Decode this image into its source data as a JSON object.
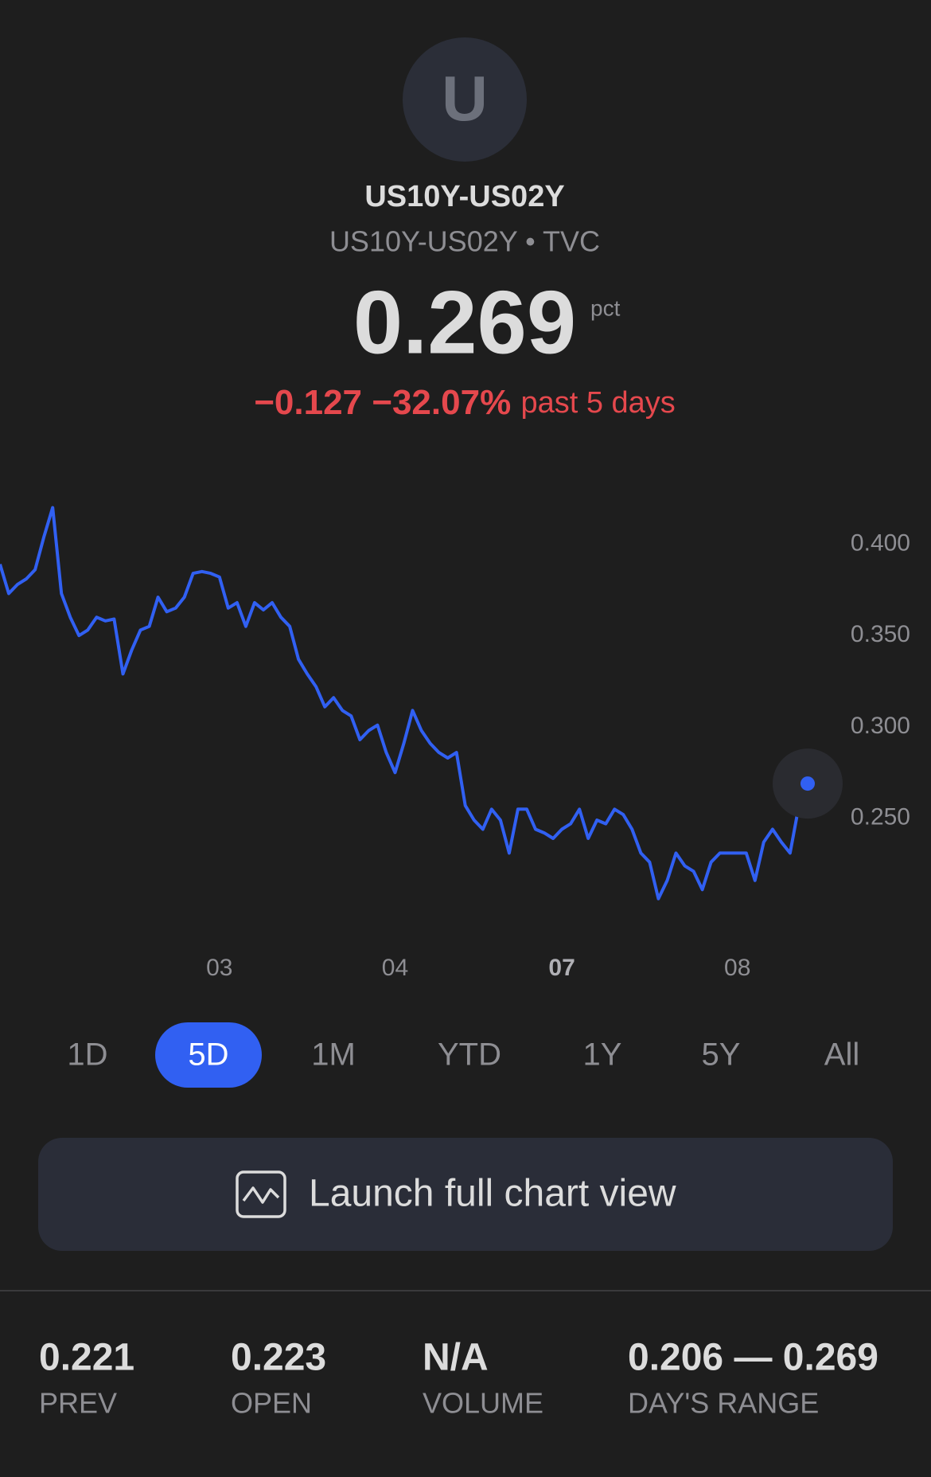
{
  "header": {
    "avatar_letter": "U",
    "title": "US10Y-US02Y",
    "subtitle": "US10Y-US02Y • TVC",
    "price": "0.269",
    "unit": "pct",
    "change": "−0.127",
    "change_percent": "−32.07%",
    "period": "past 5 days"
  },
  "chart_data": {
    "type": "line",
    "color": "#3160f2",
    "categories": [
      null,
      null,
      null,
      null,
      null,
      null,
      null,
      null,
      null,
      null,
      null,
      null,
      null,
      null,
      null,
      null,
      null,
      null,
      null,
      null,
      null,
      null,
      null,
      null,
      null,
      "03",
      null,
      null,
      null,
      null,
      null,
      null,
      null,
      null,
      null,
      null,
      null,
      null,
      null,
      null,
      null,
      null,
      null,
      null,
      null,
      "04",
      null,
      null,
      null,
      null,
      null,
      null,
      null,
      null,
      null,
      null,
      null,
      null,
      null,
      null,
      null,
      null,
      null,
      null,
      "07",
      null,
      null,
      null,
      null,
      null,
      null,
      null,
      null,
      null,
      null,
      null,
      null,
      null,
      null,
      null,
      null,
      null,
      null,
      null,
      "08",
      null,
      null,
      null,
      null,
      null,
      null,
      null,
      null
    ],
    "values": [
      0.389,
      0.373,
      0.378,
      0.381,
      0.386,
      0.404,
      0.42,
      0.373,
      0.36,
      0.35,
      0.353,
      0.36,
      0.358,
      0.359,
      0.329,
      0.342,
      0.353,
      0.355,
      0.371,
      0.363,
      0.365,
      0.371,
      0.384,
      0.385,
      0.384,
      0.382,
      0.365,
      0.368,
      0.355,
      0.368,
      0.364,
      0.368,
      0.36,
      0.355,
      0.337,
      0.329,
      0.322,
      0.311,
      0.316,
      0.309,
      0.306,
      0.293,
      0.298,
      0.301,
      0.286,
      0.275,
      0.291,
      0.309,
      0.298,
      0.291,
      0.286,
      0.283,
      0.286,
      0.257,
      0.249,
      0.244,
      0.255,
      0.249,
      0.231,
      0.255,
      0.255,
      0.244,
      0.242,
      0.239,
      0.244,
      0.247,
      0.255,
      0.239,
      0.249,
      0.247,
      0.255,
      0.252,
      0.244,
      0.231,
      0.226,
      0.206,
      0.216,
      0.231,
      0.224,
      0.221,
      0.211,
      0.226,
      0.231,
      0.231,
      0.231,
      0.231,
      0.216,
      0.237,
      0.244,
      0.237,
      0.231,
      0.257,
      0.269
    ],
    "ylim": [
      0.195,
      0.425
    ],
    "yticks": [
      {
        "value": 0.25,
        "label": "0.250"
      },
      {
        "value": 0.3,
        "label": "0.300"
      },
      {
        "value": 0.35,
        "label": "0.350"
      },
      {
        "value": 0.4,
        "label": "0.400"
      }
    ]
  },
  "ranges": {
    "options": [
      "1D",
      "5D",
      "1M",
      "YTD",
      "1Y",
      "5Y",
      "All"
    ],
    "selected": "5D"
  },
  "launch_button": "Launch full chart view",
  "stats": [
    {
      "value": "0.221",
      "label": "PREV"
    },
    {
      "value": "0.223",
      "label": "OPEN"
    },
    {
      "value": "N/A",
      "label": "VOLUME"
    },
    {
      "value": "0.206 — 0.269",
      "label": "DAY'S RANGE"
    }
  ]
}
